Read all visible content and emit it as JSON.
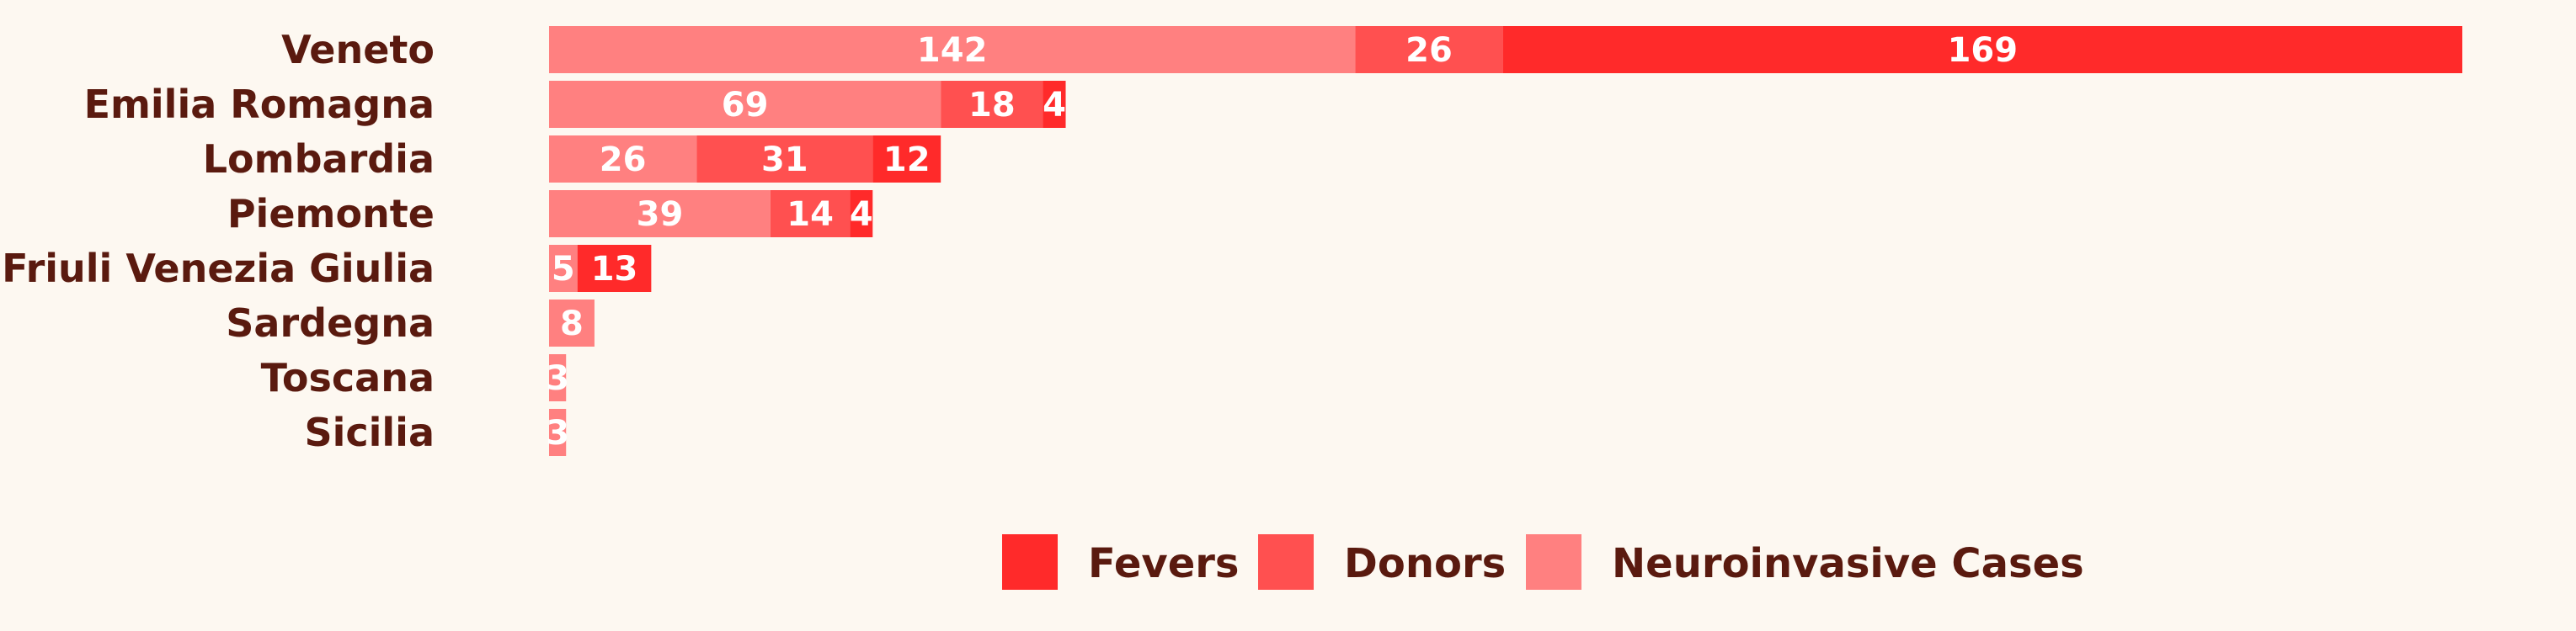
{
  "colors": {
    "background": "#fdf8f1",
    "category_text": "#5a1a0f",
    "value_text": "#ffffff"
  },
  "chart_data": {
    "type": "bar",
    "orientation": "horizontal",
    "stacked": true,
    "categories": [
      "Veneto",
      "Emilia Romagna",
      "Lombardia",
      "Piemonte",
      "Friuli Venezia Giulia",
      "Sardegna",
      "Toscana",
      "Sicilia"
    ],
    "series": [
      {
        "name": "Neuroinvasive Cases",
        "color": "#ff8080",
        "values": [
          142,
          69,
          26,
          39,
          5,
          8,
          3,
          3
        ]
      },
      {
        "name": "Donors",
        "color": "#ff5050",
        "values": [
          26,
          18,
          31,
          14,
          0,
          0,
          0,
          0
        ]
      },
      {
        "name": "Fevers",
        "color": "#ff2a2a",
        "values": [
          169,
          4,
          12,
          4,
          13,
          0,
          0,
          0
        ]
      }
    ],
    "legend_order": [
      "Fevers",
      "Donors",
      "Neuroinvasive Cases"
    ],
    "legend_position": "bottom",
    "xlim": [
      0,
      337
    ],
    "grid": false,
    "title": "",
    "xlabel": "",
    "ylabel": ""
  }
}
